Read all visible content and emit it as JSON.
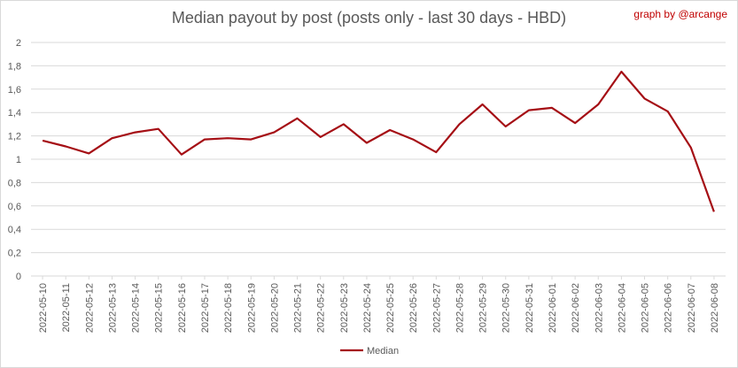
{
  "chart_data": {
    "type": "line",
    "title": "Median payout by post (posts only - last 30 days - HBD)",
    "credit": "graph by @arcange",
    "xlabel": "",
    "ylabel": "",
    "ylim": [
      0,
      2
    ],
    "yticks": [
      "0",
      "0,2",
      "0,4",
      "0,6",
      "0,8",
      "1",
      "1,2",
      "1,4",
      "1,6",
      "1,8",
      "2"
    ],
    "grid": true,
    "legend_position": "bottom",
    "line_color": "#a50f15",
    "categories": [
      "2022-05-10",
      "2022-05-11",
      "2022-05-12",
      "2022-05-13",
      "2022-05-14",
      "2022-05-15",
      "2022-05-16",
      "2022-05-17",
      "2022-05-18",
      "2022-05-19",
      "2022-05-20",
      "2022-05-21",
      "2022-05-22",
      "2022-05-23",
      "2022-05-24",
      "2022-05-25",
      "2022-05-26",
      "2022-05-27",
      "2022-05-28",
      "2022-05-29",
      "2022-05-30",
      "2022-05-31",
      "2022-06-01",
      "2022-06-02",
      "2022-06-03",
      "2022-06-04",
      "2022-06-05",
      "2022-06-06",
      "2022-06-07",
      "2022-06-08"
    ],
    "series": [
      {
        "name": "Median",
        "values": [
          1.16,
          1.11,
          1.05,
          1.18,
          1.23,
          1.26,
          1.04,
          1.17,
          1.18,
          1.17,
          1.23,
          1.35,
          1.19,
          1.3,
          1.14,
          1.25,
          1.17,
          1.06,
          1.3,
          1.47,
          1.28,
          1.42,
          1.44,
          1.31,
          1.47,
          1.75,
          1.52,
          1.41,
          1.1,
          0.55
        ]
      }
    ]
  }
}
